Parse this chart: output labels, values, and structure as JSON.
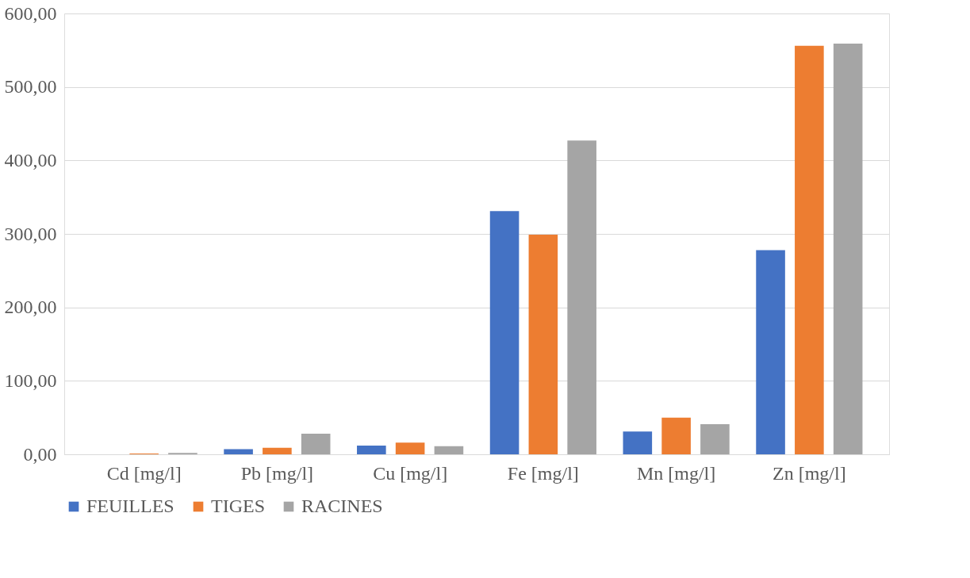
{
  "chart_data": {
    "type": "bar",
    "categories": [
      "Cd [mg/l]",
      "Pb [mg/l]",
      "Cu [mg/l]",
      "Fe [mg/l]",
      "Mn [mg/l]",
      "Zn [mg/l]"
    ],
    "series": [
      {
        "name": "FEUILLES",
        "color": "#4472c4",
        "values": [
          0,
          7,
          12,
          331,
          31,
          278
        ]
      },
      {
        "name": "TIGES",
        "color": "#ed7d31",
        "values": [
          1,
          9,
          16,
          299,
          50,
          556
        ]
      },
      {
        "name": "RACINES",
        "color": "#a5a5a5",
        "values": [
          2,
          28,
          11,
          427,
          41,
          559
        ]
      }
    ],
    "ylim": [
      0,
      600
    ],
    "yticks": [
      {
        "value": 0,
        "label": "0,00"
      },
      {
        "value": 100,
        "label": "100,00"
      },
      {
        "value": 200,
        "label": "200,00"
      },
      {
        "value": 300,
        "label": "300,00"
      },
      {
        "value": 400,
        "label": "400,00"
      },
      {
        "value": 500,
        "label": "500,00"
      },
      {
        "value": 600,
        "label": "600,00"
      }
    ],
    "grid": "y",
    "legend": "bottom"
  }
}
